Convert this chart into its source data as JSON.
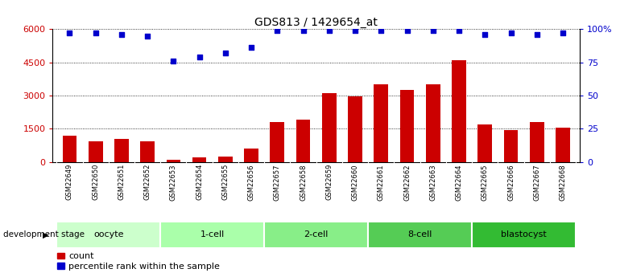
{
  "title": "GDS813 / 1429654_at",
  "samples": [
    "GSM22649",
    "GSM22650",
    "GSM22651",
    "GSM22652",
    "GSM22653",
    "GSM22654",
    "GSM22655",
    "GSM22656",
    "GSM22657",
    "GSM22658",
    "GSM22659",
    "GSM22660",
    "GSM22661",
    "GSM22662",
    "GSM22663",
    "GSM22664",
    "GSM22665",
    "GSM22666",
    "GSM22667",
    "GSM22668"
  ],
  "counts": [
    1200,
    950,
    1050,
    950,
    100,
    200,
    250,
    600,
    1800,
    1900,
    3100,
    2950,
    3500,
    3250,
    3500,
    4600,
    1700,
    1450,
    1800,
    1550
  ],
  "percentile": [
    97,
    97,
    96,
    95,
    76,
    79,
    82,
    86,
    99,
    99,
    99,
    99,
    99,
    99,
    99,
    99,
    96,
    97,
    96,
    97
  ],
  "bar_color": "#cc0000",
  "dot_color": "#0000cc",
  "ylim_left": [
    0,
    6000
  ],
  "ylim_right": [
    0,
    100
  ],
  "yticks_left": [
    0,
    1500,
    3000,
    4500,
    6000
  ],
  "yticks_right": [
    0,
    25,
    50,
    75,
    100
  ],
  "ytick_labels_left": [
    "0",
    "1500",
    "3000",
    "4500",
    "6000"
  ],
  "ytick_labels_right": [
    "0",
    "25",
    "50",
    "75",
    "100%"
  ],
  "groups": [
    {
      "label": "oocyte",
      "start": 0,
      "end": 3,
      "color": "#ccffcc"
    },
    {
      "label": "1-cell",
      "start": 4,
      "end": 7,
      "color": "#aaffaa"
    },
    {
      "label": "2-cell",
      "start": 8,
      "end": 11,
      "color": "#88ee88"
    },
    {
      "label": "8-cell",
      "start": 12,
      "end": 15,
      "color": "#55cc55"
    },
    {
      "label": "blastocyst",
      "start": 16,
      "end": 19,
      "color": "#33bb33"
    }
  ],
  "dev_stage_label": "development stage",
  "legend_count_label": "count",
  "legend_pct_label": "percentile rank within the sample",
  "left_axis_color": "#cc0000",
  "right_axis_color": "#0000cc",
  "background_color": "#ffffff",
  "bar_width": 0.55,
  "xtick_bg": "#cccccc",
  "group_border_color": "#ffffff",
  "title_fontsize": 10,
  "tick_fontsize": 8,
  "sample_fontsize": 6,
  "group_fontsize": 8,
  "legend_fontsize": 8
}
